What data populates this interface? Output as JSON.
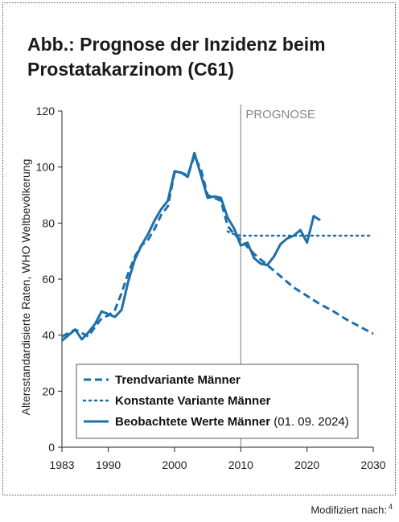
{
  "chart_data": {
    "type": "line",
    "title_lines": [
      "Abb.: Prognose der Inzidenz beim",
      "Prostatakarzinom (C61)"
    ],
    "ylabel": "Altersstandardisierte Raten, WHO Weltbevölkerung",
    "xlabel": "",
    "xlim": [
      1983,
      2030
    ],
    "ylim": [
      0,
      120
    ],
    "x_ticks": [
      1983,
      1990,
      2000,
      2010,
      2020,
      2030
    ],
    "y_ticks": [
      0,
      20,
      40,
      60,
      80,
      100,
      120
    ],
    "grid": false,
    "prognose_start": 2010,
    "prognose_label": "PROGNOSE",
    "legend_position": "bottom-left",
    "series": [
      {
        "name": "Trendvariante Männer",
        "style": "dashed",
        "color": "#1f6fa8",
        "points": [
          [
            1983,
            39.5
          ],
          [
            1985,
            42
          ],
          [
            1987,
            39.5
          ],
          [
            1988,
            43
          ],
          [
            1989,
            46
          ],
          [
            1990,
            47
          ],
          [
            1991,
            49
          ],
          [
            1992,
            55
          ],
          [
            1993,
            62
          ],
          [
            1994,
            68
          ],
          [
            1995,
            72
          ],
          [
            1996,
            74
          ],
          [
            1997,
            78
          ],
          [
            1998,
            83
          ],
          [
            1999,
            86
          ],
          [
            2000,
            98
          ],
          [
            2001,
            98
          ],
          [
            2002,
            97
          ],
          [
            2003,
            104
          ],
          [
            2004,
            99
          ],
          [
            2005,
            90
          ],
          [
            2006,
            89
          ],
          [
            2007,
            88
          ],
          [
            2008,
            79
          ],
          [
            2009,
            76
          ],
          [
            2010,
            74
          ],
          [
            2012,
            69
          ],
          [
            2014,
            65
          ],
          [
            2016,
            61
          ],
          [
            2018,
            57
          ],
          [
            2020,
            54
          ],
          [
            2022,
            51
          ],
          [
            2024,
            48.5
          ],
          [
            2026,
            45.5
          ],
          [
            2028,
            43
          ],
          [
            2030,
            40.5
          ]
        ]
      },
      {
        "name": "Konstante Variante Männer",
        "style": "dotted",
        "color": "#1f6fa8",
        "points": [
          [
            2008,
            77
          ],
          [
            2009,
            76
          ],
          [
            2010,
            75.5
          ],
          [
            2012,
            75.5
          ],
          [
            2015,
            75.5
          ],
          [
            2020,
            75.5
          ],
          [
            2025,
            75.5
          ],
          [
            2030,
            75.5
          ]
        ]
      },
      {
        "name": "Beobachtete Werte Männer",
        "name_suffix": "(01. 09. 2024)",
        "style": "solid",
        "color": "#1f6fa8",
        "points": [
          [
            1983,
            38
          ],
          [
            1984,
            40
          ],
          [
            1985,
            42
          ],
          [
            1986,
            38.5
          ],
          [
            1987,
            41
          ],
          [
            1988,
            44
          ],
          [
            1989,
            48.5
          ],
          [
            1990,
            47.5
          ],
          [
            1991,
            46.5
          ],
          [
            1992,
            49
          ],
          [
            1993,
            59
          ],
          [
            1994,
            67
          ],
          [
            1995,
            72
          ],
          [
            1996,
            76
          ],
          [
            1997,
            81
          ],
          [
            1998,
            85
          ],
          [
            1999,
            88
          ],
          [
            2000,
            98.5
          ],
          [
            2001,
            98
          ],
          [
            2002,
            96.5
          ],
          [
            2003,
            105
          ],
          [
            2004,
            97
          ],
          [
            2005,
            89
          ],
          [
            2006,
            89.5
          ],
          [
            2007,
            89
          ],
          [
            2008,
            82
          ],
          [
            2009,
            78
          ],
          [
            2010,
            72
          ],
          [
            2011,
            73
          ],
          [
            2012,
            67.5
          ],
          [
            2013,
            65.5
          ],
          [
            2014,
            65
          ],
          [
            2015,
            68
          ],
          [
            2016,
            72.5
          ],
          [
            2017,
            74.5
          ],
          [
            2018,
            75.5
          ],
          [
            2019,
            77.5
          ],
          [
            2020,
            73
          ],
          [
            2021,
            82.5
          ],
          [
            2022,
            81
          ]
        ]
      }
    ]
  },
  "source_note": {
    "text": "Modifiziert nach:",
    "ref": "4"
  }
}
